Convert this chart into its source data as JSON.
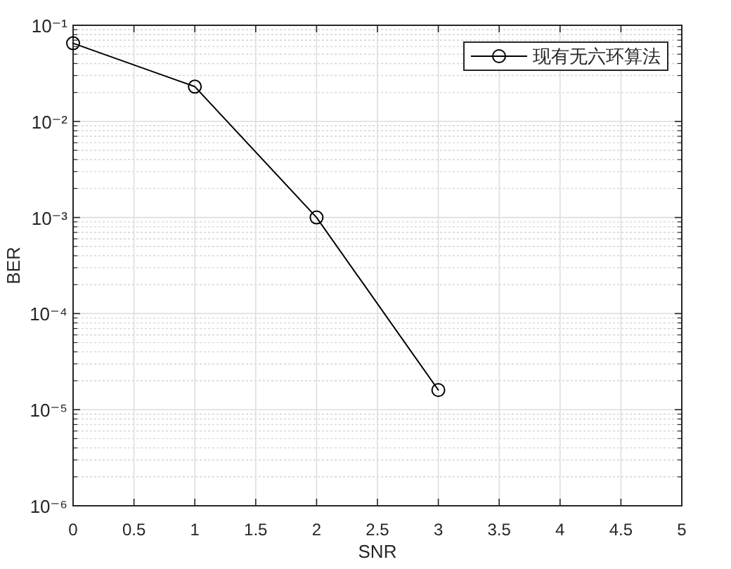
{
  "chart_data": {
    "type": "line",
    "xlabel": "SNR",
    "ylabel": "BER",
    "x": [
      0,
      1,
      2,
      3
    ],
    "series": [
      {
        "name": "现有无六环算法",
        "color": "#000000",
        "values": [
          0.065,
          0.023,
          0.001,
          1.6e-05
        ]
      }
    ],
    "xlim": [
      0,
      5
    ],
    "ylim": [
      1e-06,
      0.1
    ],
    "xticks": [
      0,
      0.5,
      1,
      1.5,
      2,
      2.5,
      3,
      3.5,
      4,
      4.5,
      5
    ],
    "yticks": [
      {
        "value": 1e-06,
        "label": "10⁻⁶"
      },
      {
        "value": 1e-05,
        "label": "10⁻⁵"
      },
      {
        "value": 0.0001,
        "label": "10⁻⁴"
      },
      {
        "value": 0.001,
        "label": "10⁻³"
      },
      {
        "value": 0.01,
        "label": "10⁻²"
      },
      {
        "value": 0.1,
        "label": "10⁻¹"
      }
    ],
    "log": "y",
    "grid": true,
    "legend": "top right",
    "marker": "circle",
    "line_style": "solid"
  }
}
